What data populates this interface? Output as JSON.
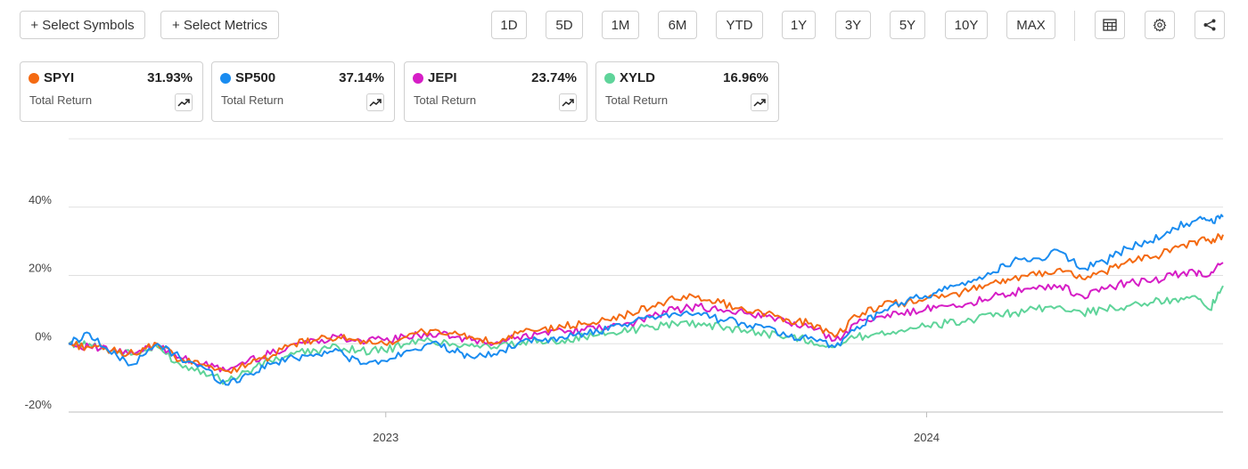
{
  "toolbar": {
    "select_symbols": "+ Select Symbols",
    "select_metrics": "+ Select Metrics",
    "ranges": [
      "1D",
      "5D",
      "1M",
      "6M",
      "YTD",
      "1Y",
      "3Y",
      "5Y",
      "10Y",
      "MAX"
    ],
    "icons": [
      "table-icon",
      "gear-icon",
      "share-icon"
    ]
  },
  "cards": [
    {
      "symbol": "SPYI",
      "value": "31.93%",
      "metric": "Total Return",
      "color": "#f46a12"
    },
    {
      "symbol": "SP500",
      "value": "37.14%",
      "metric": "Total Return",
      "color": "#1a8cf0"
    },
    {
      "symbol": "JEPI",
      "value": "23.74%",
      "metric": "Total Return",
      "color": "#d61ec6"
    },
    {
      "symbol": "XYLD",
      "value": "16.96%",
      "metric": "Total Return",
      "color": "#5fd49a"
    }
  ],
  "chart_data": {
    "type": "line",
    "ylabel": "",
    "xlabel": "",
    "y_ticks": [
      "40%",
      "20%",
      "0%",
      "-20%"
    ],
    "y_tick_values": [
      40,
      20,
      0,
      -20
    ],
    "ylim": [
      -20,
      60
    ],
    "x_ticks": [
      "2023",
      "2024"
    ],
    "x_tick_dates": [
      "2023-01-01",
      "2024-01-01"
    ],
    "x_range": [
      "2022-06-01",
      "2024-07-19"
    ],
    "grid": "horizontal",
    "series": [
      {
        "name": "SPYI",
        "color": "#f46a12",
        "points": [
          [
            "2022-06-01",
            0
          ],
          [
            "2022-06-15",
            -1
          ],
          [
            "2022-06-30",
            -2
          ],
          [
            "2022-07-15",
            -3
          ],
          [
            "2022-07-31",
            0
          ],
          [
            "2022-08-15",
            -5
          ],
          [
            "2022-08-31",
            -6
          ],
          [
            "2022-09-15",
            -8
          ],
          [
            "2022-09-30",
            -6
          ],
          [
            "2022-10-15",
            -4
          ],
          [
            "2022-10-31",
            0
          ],
          [
            "2022-11-15",
            1
          ],
          [
            "2022-11-30",
            2
          ],
          [
            "2022-12-15",
            0
          ],
          [
            "2022-12-31",
            0
          ],
          [
            "2023-01-15",
            2
          ],
          [
            "2023-01-31",
            4
          ],
          [
            "2023-02-15",
            3
          ],
          [
            "2023-02-28",
            2
          ],
          [
            "2023-03-15",
            0
          ],
          [
            "2023-03-31",
            3
          ],
          [
            "2023-04-15",
            4
          ],
          [
            "2023-04-30",
            5
          ],
          [
            "2023-05-15",
            6
          ],
          [
            "2023-05-31",
            7
          ],
          [
            "2023-06-15",
            9
          ],
          [
            "2023-06-30",
            11
          ],
          [
            "2023-07-15",
            13
          ],
          [
            "2023-07-31",
            14
          ],
          [
            "2023-08-15",
            12
          ],
          [
            "2023-08-31",
            10
          ],
          [
            "2023-09-15",
            9
          ],
          [
            "2023-09-30",
            7
          ],
          [
            "2023-10-15",
            6
          ],
          [
            "2023-10-31",
            2
          ],
          [
            "2023-11-15",
            8
          ],
          [
            "2023-11-30",
            11
          ],
          [
            "2023-12-15",
            12
          ],
          [
            "2023-12-31",
            13
          ],
          [
            "2024-01-15",
            14
          ],
          [
            "2024-01-31",
            16
          ],
          [
            "2024-02-15",
            18
          ],
          [
            "2024-02-28",
            19
          ],
          [
            "2024-03-15",
            20
          ],
          [
            "2024-03-31",
            22
          ],
          [
            "2024-04-15",
            19
          ],
          [
            "2024-04-30",
            21
          ],
          [
            "2024-05-15",
            24
          ],
          [
            "2024-05-31",
            25
          ],
          [
            "2024-06-15",
            28
          ],
          [
            "2024-06-30",
            30
          ],
          [
            "2024-07-10",
            30
          ],
          [
            "2024-07-19",
            31.93
          ]
        ]
      },
      {
        "name": "SP500",
        "color": "#1a8cf0",
        "points": [
          [
            "2022-06-01",
            0
          ],
          [
            "2022-06-15",
            3
          ],
          [
            "2022-06-30",
            -3
          ],
          [
            "2022-07-15",
            -6
          ],
          [
            "2022-07-31",
            0
          ],
          [
            "2022-08-15",
            -4
          ],
          [
            "2022-08-31",
            -7
          ],
          [
            "2022-09-15",
            -12
          ],
          [
            "2022-09-30",
            -9
          ],
          [
            "2022-10-15",
            -6
          ],
          [
            "2022-10-31",
            -4
          ],
          [
            "2022-11-15",
            -3
          ],
          [
            "2022-11-30",
            -2
          ],
          [
            "2022-12-15",
            -6
          ],
          [
            "2022-12-31",
            -5
          ],
          [
            "2023-01-15",
            -2
          ],
          [
            "2023-01-31",
            0
          ],
          [
            "2023-02-15",
            -2
          ],
          [
            "2023-02-28",
            -4
          ],
          [
            "2023-03-15",
            -3
          ],
          [
            "2023-03-31",
            0
          ],
          [
            "2023-04-15",
            1
          ],
          [
            "2023-04-30",
            2
          ],
          [
            "2023-05-15",
            3
          ],
          [
            "2023-05-31",
            4
          ],
          [
            "2023-06-15",
            6
          ],
          [
            "2023-06-30",
            8
          ],
          [
            "2023-07-15",
            9
          ],
          [
            "2023-07-31",
            9
          ],
          [
            "2023-08-15",
            7
          ],
          [
            "2023-08-31",
            6
          ],
          [
            "2023-09-15",
            5
          ],
          [
            "2023-09-30",
            2
          ],
          [
            "2023-10-15",
            2
          ],
          [
            "2023-10-31",
            -1
          ],
          [
            "2023-11-15",
            5
          ],
          [
            "2023-11-30",
            9
          ],
          [
            "2023-12-15",
            12
          ],
          [
            "2023-12-31",
            14
          ],
          [
            "2024-01-15",
            16
          ],
          [
            "2024-01-31",
            18
          ],
          [
            "2024-02-15",
            21
          ],
          [
            "2024-02-28",
            24
          ],
          [
            "2024-03-15",
            25
          ],
          [
            "2024-03-31",
            27
          ],
          [
            "2024-04-15",
            22
          ],
          [
            "2024-04-30",
            24
          ],
          [
            "2024-05-15",
            28
          ],
          [
            "2024-05-31",
            30
          ],
          [
            "2024-06-15",
            34
          ],
          [
            "2024-06-30",
            36
          ],
          [
            "2024-07-10",
            36
          ],
          [
            "2024-07-19",
            37.14
          ]
        ]
      },
      {
        "name": "JEPI",
        "color": "#d61ec6",
        "points": [
          [
            "2022-06-01",
            0
          ],
          [
            "2022-06-15",
            -1
          ],
          [
            "2022-06-30",
            -2
          ],
          [
            "2022-07-15",
            -3
          ],
          [
            "2022-07-31",
            0
          ],
          [
            "2022-08-15",
            -4
          ],
          [
            "2022-08-31",
            -6
          ],
          [
            "2022-09-15",
            -8
          ],
          [
            "2022-09-30",
            -5
          ],
          [
            "2022-10-15",
            -3
          ],
          [
            "2022-10-31",
            0
          ],
          [
            "2022-11-15",
            1
          ],
          [
            "2022-11-30",
            2
          ],
          [
            "2022-12-15",
            1
          ],
          [
            "2022-12-31",
            1
          ],
          [
            "2023-01-15",
            2
          ],
          [
            "2023-01-31",
            3
          ],
          [
            "2023-02-15",
            2
          ],
          [
            "2023-02-28",
            1
          ],
          [
            "2023-03-15",
            0
          ],
          [
            "2023-03-31",
            2
          ],
          [
            "2023-04-15",
            3
          ],
          [
            "2023-04-30",
            4
          ],
          [
            "2023-05-15",
            4
          ],
          [
            "2023-05-31",
            5
          ],
          [
            "2023-06-15",
            6
          ],
          [
            "2023-06-30",
            8
          ],
          [
            "2023-07-15",
            10
          ],
          [
            "2023-07-31",
            11
          ],
          [
            "2023-08-15",
            10
          ],
          [
            "2023-08-31",
            9
          ],
          [
            "2023-09-15",
            8
          ],
          [
            "2023-09-30",
            6
          ],
          [
            "2023-10-15",
            5
          ],
          [
            "2023-10-31",
            1
          ],
          [
            "2023-11-15",
            6
          ],
          [
            "2023-11-30",
            8
          ],
          [
            "2023-12-15",
            9
          ],
          [
            "2023-12-31",
            10
          ],
          [
            "2024-01-15",
            11
          ],
          [
            "2024-01-31",
            12
          ],
          [
            "2024-02-15",
            14
          ],
          [
            "2024-02-28",
            15
          ],
          [
            "2024-03-15",
            16
          ],
          [
            "2024-03-31",
            17
          ],
          [
            "2024-04-15",
            14
          ],
          [
            "2024-04-30",
            16
          ],
          [
            "2024-05-15",
            18
          ],
          [
            "2024-05-31",
            18
          ],
          [
            "2024-06-15",
            20
          ],
          [
            "2024-06-30",
            21
          ],
          [
            "2024-07-10",
            20
          ],
          [
            "2024-07-19",
            23.74
          ]
        ]
      },
      {
        "name": "XYLD",
        "color": "#5fd49a",
        "points": [
          [
            "2022-06-01",
            0
          ],
          [
            "2022-06-15",
            0
          ],
          [
            "2022-06-30",
            -2
          ],
          [
            "2022-07-15",
            -3
          ],
          [
            "2022-07-31",
            -1
          ],
          [
            "2022-08-15",
            -6
          ],
          [
            "2022-08-31",
            -8
          ],
          [
            "2022-09-15",
            -11
          ],
          [
            "2022-09-30",
            -8
          ],
          [
            "2022-10-15",
            -5
          ],
          [
            "2022-10-31",
            -3
          ],
          [
            "2022-11-15",
            -2
          ],
          [
            "2022-11-30",
            -1
          ],
          [
            "2022-12-15",
            -2
          ],
          [
            "2022-12-31",
            -2
          ],
          [
            "2023-01-15",
            0
          ],
          [
            "2023-01-31",
            1
          ],
          [
            "2023-02-15",
            0
          ],
          [
            "2023-02-28",
            0
          ],
          [
            "2023-03-15",
            -1
          ],
          [
            "2023-03-31",
            0
          ],
          [
            "2023-04-15",
            1
          ],
          [
            "2023-04-30",
            1
          ],
          [
            "2023-05-15",
            2
          ],
          [
            "2023-05-31",
            3
          ],
          [
            "2023-06-15",
            4
          ],
          [
            "2023-06-30",
            5
          ],
          [
            "2023-07-15",
            6
          ],
          [
            "2023-07-31",
            6
          ],
          [
            "2023-08-15",
            5
          ],
          [
            "2023-08-31",
            4
          ],
          [
            "2023-09-15",
            3
          ],
          [
            "2023-09-30",
            2
          ],
          [
            "2023-10-15",
            1
          ],
          [
            "2023-10-31",
            -1
          ],
          [
            "2023-11-15",
            2
          ],
          [
            "2023-11-30",
            3
          ],
          [
            "2023-12-15",
            4
          ],
          [
            "2023-12-31",
            5
          ],
          [
            "2024-01-15",
            6
          ],
          [
            "2024-01-31",
            7
          ],
          [
            "2024-02-15",
            8
          ],
          [
            "2024-02-28",
            9
          ],
          [
            "2024-03-15",
            10
          ],
          [
            "2024-03-31",
            11
          ],
          [
            "2024-04-15",
            9
          ],
          [
            "2024-04-30",
            10
          ],
          [
            "2024-05-15",
            11
          ],
          [
            "2024-05-31",
            12
          ],
          [
            "2024-06-15",
            13
          ],
          [
            "2024-06-30",
            14
          ],
          [
            "2024-07-10",
            10
          ],
          [
            "2024-07-19",
            16.96
          ]
        ]
      }
    ]
  }
}
